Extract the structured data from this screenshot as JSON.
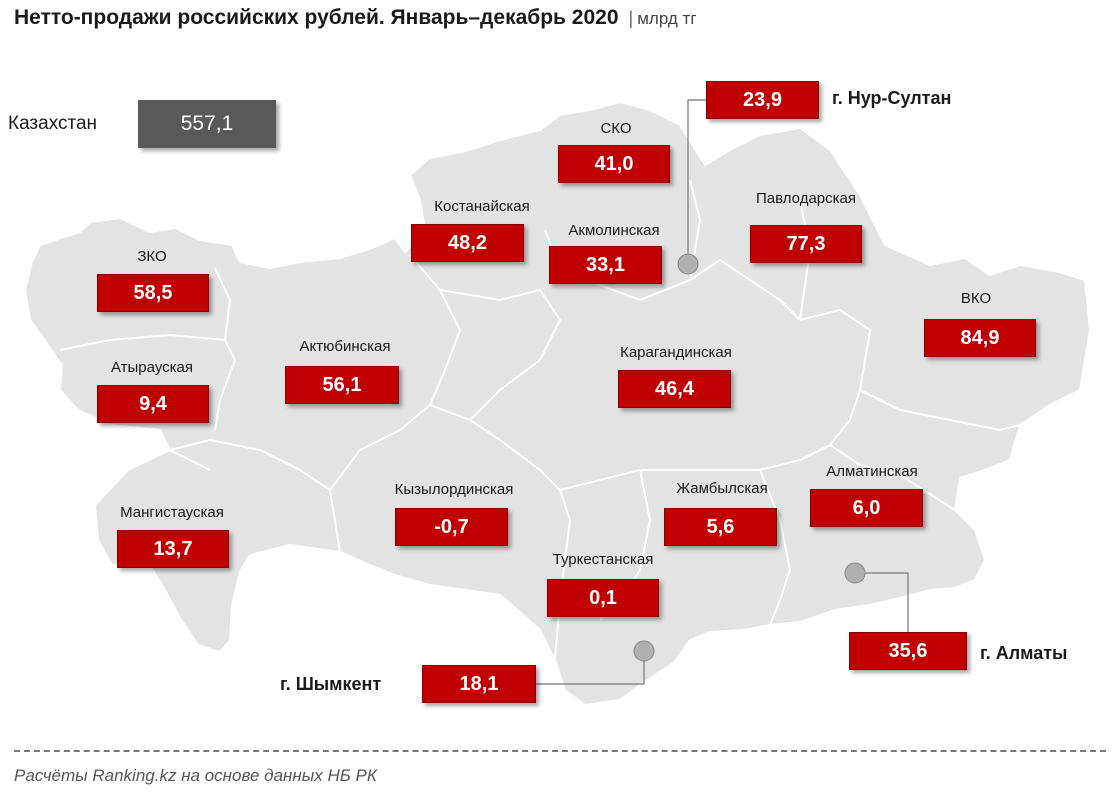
{
  "title": {
    "main": "Нетто-продажи российских рублей. Январь–декабрь 2020",
    "separator": "|",
    "unit": "млрд тг"
  },
  "total": {
    "label": "Казахстан",
    "value": "557,1"
  },
  "regions": {
    "zko": {
      "label": "ЗКО",
      "value": "58,5"
    },
    "atyrau": {
      "label": "Атырауская",
      "value": "9,4"
    },
    "mangistau": {
      "label": "Мангистауская",
      "value": "13,7"
    },
    "aktobe": {
      "label": "Актюбинская",
      "value": "56,1"
    },
    "kostanay": {
      "label": "Костанайская",
      "value": "48,2"
    },
    "sko": {
      "label": "СКО",
      "value": "41,0"
    },
    "akmola": {
      "label": "Акмолинская",
      "value": "33,1"
    },
    "pavlodar": {
      "label": "Павлодарская",
      "value": "77,3"
    },
    "vko": {
      "label": "ВКО",
      "value": "84,9"
    },
    "karaganda": {
      "label": "Карагандинская",
      "value": "46,4"
    },
    "kyzylorda": {
      "label": "Кызылординская",
      "value": "-0,7"
    },
    "zhambyl": {
      "label": "Жамбылская",
      "value": "5,6"
    },
    "almaty_region": {
      "label": "Алматинская",
      "value": "6,0"
    },
    "turkestan": {
      "label": "Туркестанская",
      "value": "0,1"
    }
  },
  "cities": {
    "nursultan": {
      "label": "г. Нур-Султан",
      "value": "23,9"
    },
    "almaty": {
      "label": "г. Алматы",
      "value": "35,6"
    },
    "shymkent": {
      "label": "г. Шымкент",
      "value": "18,1"
    }
  },
  "source": "Расчёты Ranking.kz на основе данных НБ РК",
  "colors": {
    "value_box": "#c00000",
    "total_box": "#595959",
    "map_fill": "#e3e3e3",
    "map_border": "#ffffff"
  }
}
